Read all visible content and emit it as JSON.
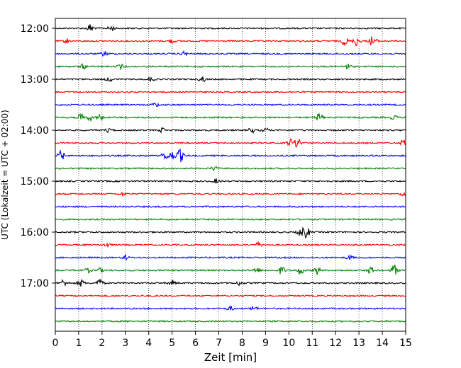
{
  "chart_data": {
    "type": "line",
    "title": "",
    "xlabel": "Zeit  [min]",
    "ylabel": "UTC (Lokalzeit = UTC + 02:00)",
    "xlim": [
      0,
      15
    ],
    "x_ticks": [
      0,
      1,
      2,
      3,
      4,
      5,
      6,
      7,
      8,
      9,
      10,
      11,
      12,
      13,
      14,
      15
    ],
    "x_tick_labels": [
      "0",
      "1",
      "2",
      "3",
      "4",
      "5",
      "6",
      "7",
      "8",
      "9",
      "10",
      "11",
      "12",
      "13",
      "14",
      "15"
    ],
    "y_ticks": [
      "12:00",
      "13:00",
      "14:00",
      "15:00",
      "16:00",
      "17:00"
    ],
    "grid": "vertical-dotted",
    "trace_interval_minutes": 15,
    "colors": [
      "#000000",
      "#ff0000",
      "#0000ff",
      "#008000"
    ],
    "series": [
      {
        "start": "12:00",
        "color": "#000000",
        "events": [
          [
            1.5,
            6
          ],
          [
            2.4,
            4
          ]
        ]
      },
      {
        "start": "12:15",
        "color": "#ff0000",
        "events": [
          [
            0.5,
            3
          ],
          [
            5.0,
            3
          ],
          [
            12.4,
            6
          ],
          [
            12.9,
            7
          ],
          [
            13.6,
            9
          ]
        ]
      },
      {
        "start": "12:30",
        "color": "#0000ff",
        "events": [
          [
            2.1,
            3
          ],
          [
            5.5,
            3
          ]
        ]
      },
      {
        "start": "12:45",
        "color": "#008000",
        "events": [
          [
            1.2,
            3
          ],
          [
            2.8,
            3
          ],
          [
            12.5,
            4
          ]
        ]
      },
      {
        "start": "13:00",
        "color": "#000000",
        "events": [
          [
            2.3,
            3
          ],
          [
            4.1,
            3
          ],
          [
            6.3,
            4
          ]
        ]
      },
      {
        "start": "13:15",
        "color": "#ff0000",
        "events": []
      },
      {
        "start": "13:30",
        "color": "#0000ff",
        "events": [
          [
            4.3,
            3
          ]
        ]
      },
      {
        "start": "13:45",
        "color": "#008000",
        "events": [
          [
            1.1,
            5
          ],
          [
            1.5,
            4
          ],
          [
            1.9,
            4
          ],
          [
            11.3,
            7
          ],
          [
            14.5,
            3
          ]
        ]
      },
      {
        "start": "14:00",
        "color": "#000000",
        "events": [
          [
            2.3,
            3
          ],
          [
            4.6,
            3
          ],
          [
            8.4,
            4
          ],
          [
            9.0,
            3
          ]
        ]
      },
      {
        "start": "14:15",
        "color": "#ff0000",
        "events": [
          [
            10.1,
            6
          ],
          [
            10.4,
            7
          ],
          [
            14.9,
            5
          ]
        ]
      },
      {
        "start": "14:30",
        "color": "#0000ff",
        "events": [
          [
            0.25,
            7
          ],
          [
            4.7,
            6
          ],
          [
            5.0,
            6
          ],
          [
            5.35,
            9
          ]
        ]
      },
      {
        "start": "14:45",
        "color": "#008000",
        "events": [
          [
            6.8,
            3
          ]
        ]
      },
      {
        "start": "15:00",
        "color": "#000000",
        "events": [
          [
            6.9,
            3
          ]
        ]
      },
      {
        "start": "15:15",
        "color": "#ff0000",
        "events": [
          [
            2.9,
            3
          ],
          [
            14.9,
            3
          ]
        ]
      },
      {
        "start": "15:30",
        "color": "#0000ff",
        "events": []
      },
      {
        "start": "15:45",
        "color": "#008000",
        "events": []
      },
      {
        "start": "16:00",
        "color": "#000000",
        "events": [
          [
            10.5,
            6
          ],
          [
            10.75,
            8
          ]
        ]
      },
      {
        "start": "16:15",
        "color": "#ff0000",
        "events": [
          [
            2.2,
            3
          ],
          [
            8.7,
            3
          ]
        ]
      },
      {
        "start": "16:30",
        "color": "#0000ff",
        "events": [
          [
            3.0,
            3
          ],
          [
            12.6,
            3
          ]
        ]
      },
      {
        "start": "16:45",
        "color": "#008000",
        "events": [
          [
            1.4,
            3
          ],
          [
            1.9,
            3
          ],
          [
            8.6,
            4
          ],
          [
            9.7,
            6
          ],
          [
            10.5,
            6
          ],
          [
            11.2,
            6
          ],
          [
            13.5,
            5
          ],
          [
            14.5,
            8
          ]
        ]
      },
      {
        "start": "17:00",
        "color": "#000000",
        "events": [
          [
            0.35,
            5
          ],
          [
            1.1,
            5
          ],
          [
            1.9,
            6
          ],
          [
            5.0,
            4
          ],
          [
            7.9,
            3
          ]
        ]
      },
      {
        "start": "17:15",
        "color": "#ff0000",
        "events": []
      },
      {
        "start": "17:30",
        "color": "#0000ff",
        "events": [
          [
            7.5,
            3
          ],
          [
            8.5,
            3
          ]
        ]
      },
      {
        "start": "17:45",
        "color": "#008000",
        "events": []
      }
    ]
  }
}
